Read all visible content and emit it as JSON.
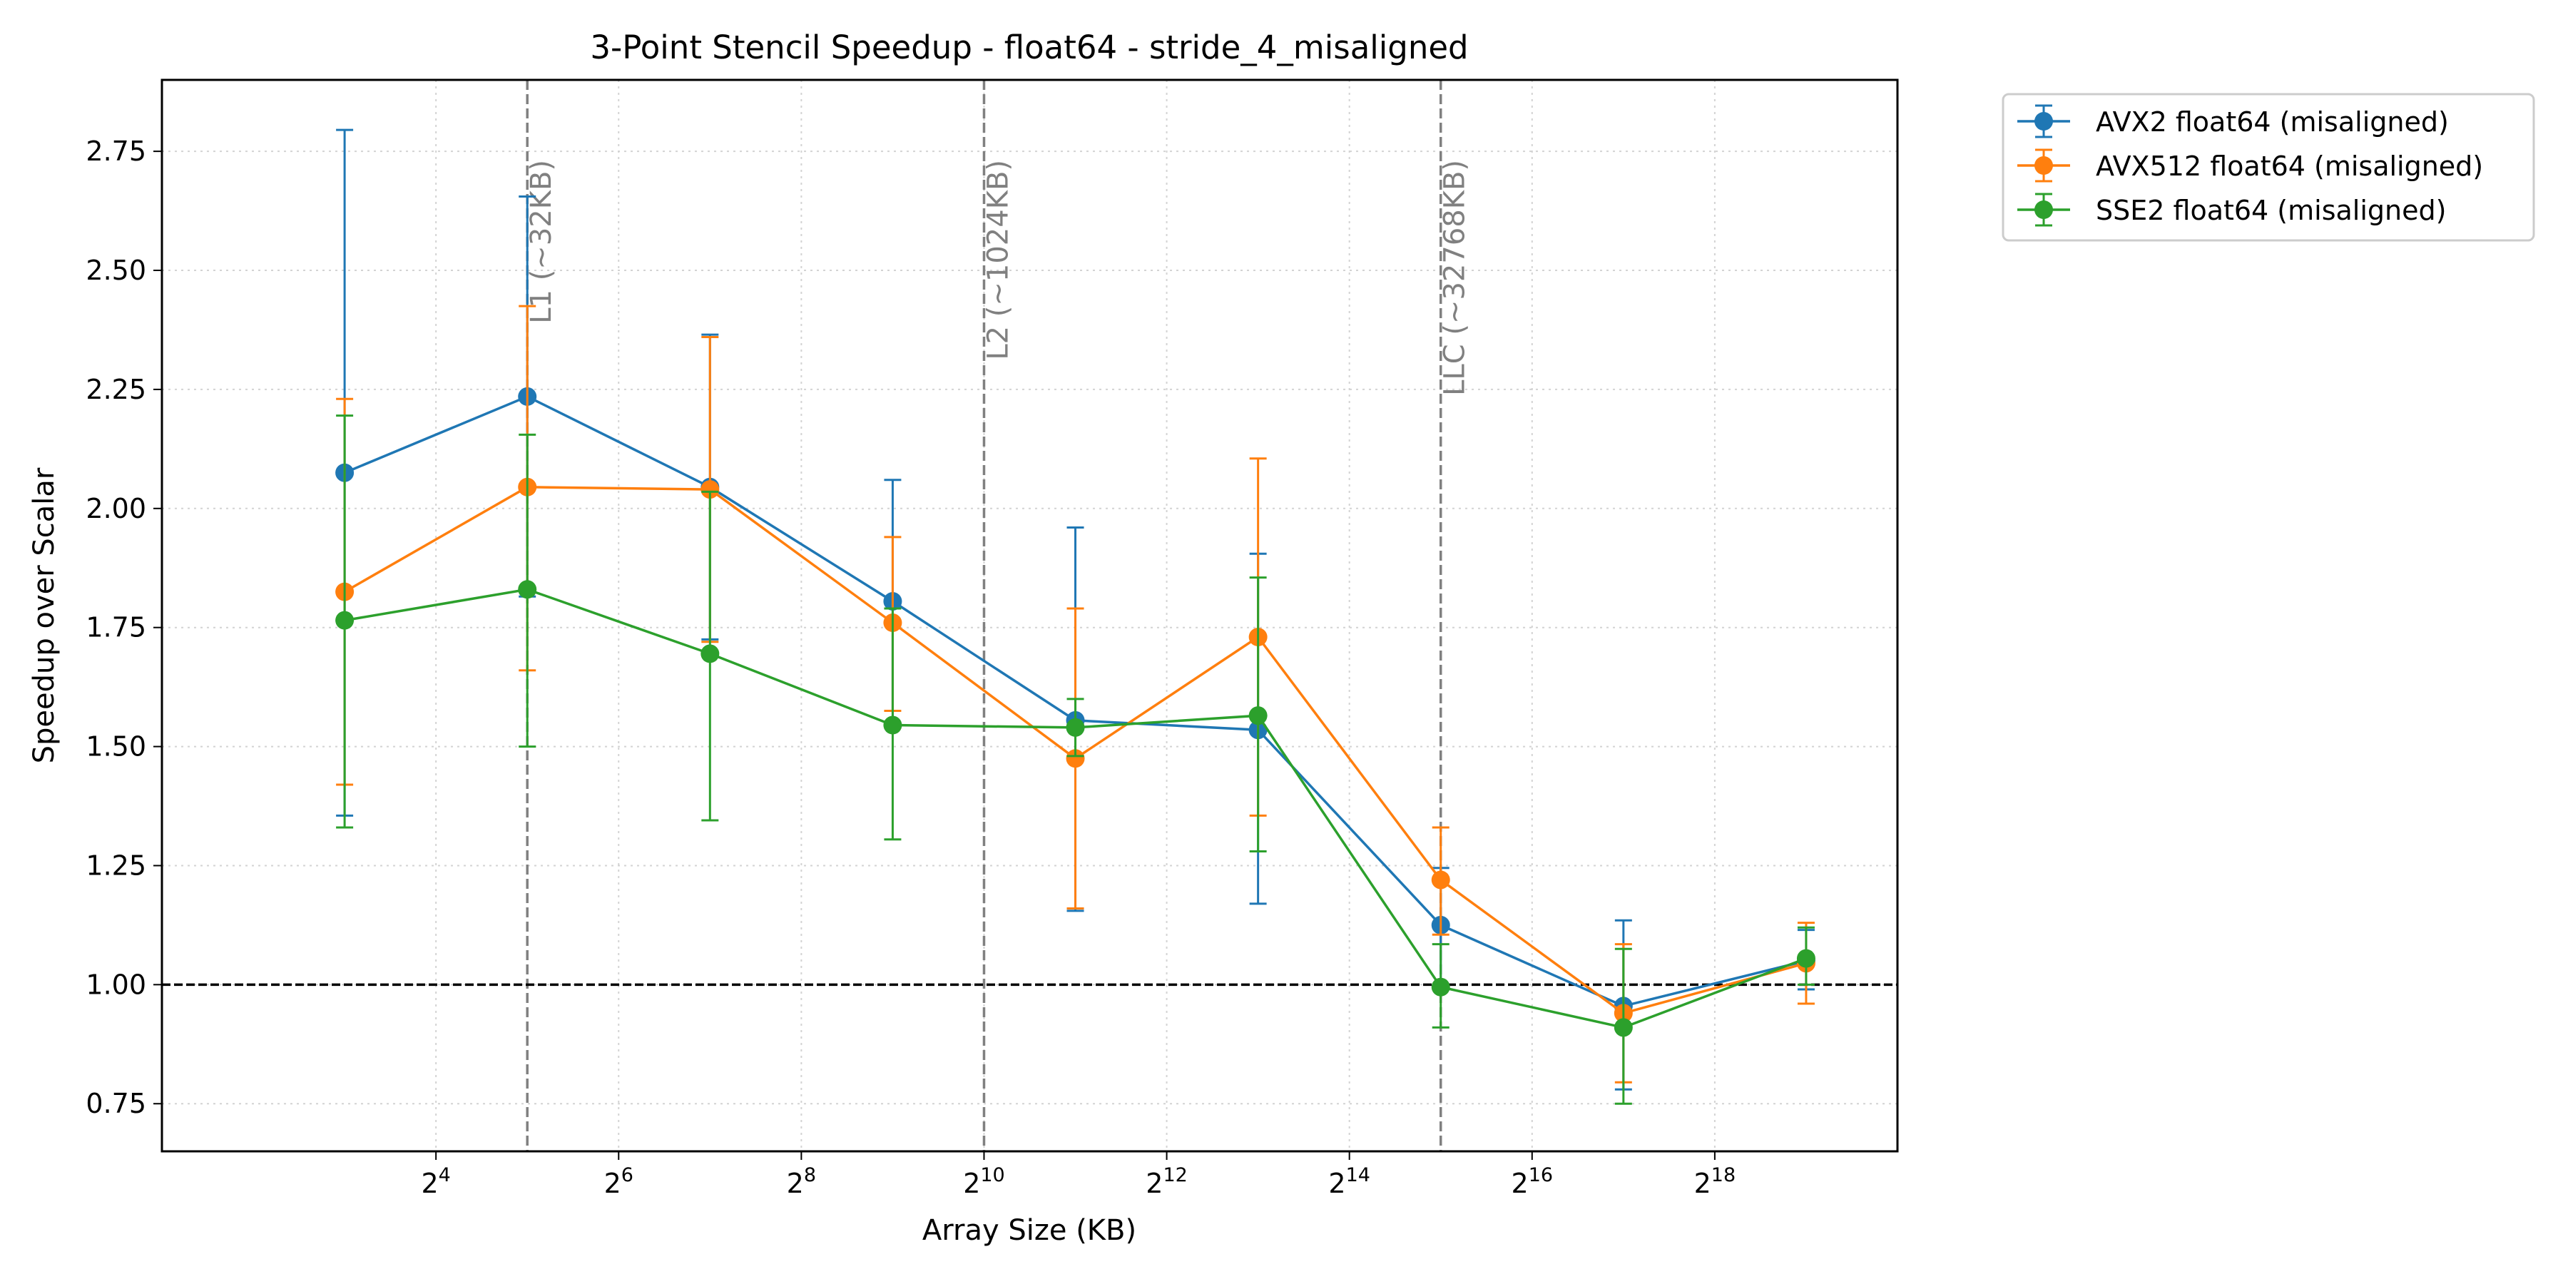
{
  "chart_data": {
    "type": "line",
    "title": "3-Point Stencil Speedup - float64 - stride_4_misaligned",
    "xlabel": "Array Size (KB)",
    "ylabel": "Speedup over Scalar",
    "x_scale": "log2",
    "xlim": [
      2.0,
      1048576
    ],
    "ylim": [
      0.65,
      2.9
    ],
    "x_ticks": [
      {
        "value": 16,
        "base": "2",
        "exp": "4"
      },
      {
        "value": 64,
        "base": "2",
        "exp": "6"
      },
      {
        "value": 256,
        "base": "2",
        "exp": "8"
      },
      {
        "value": 1024,
        "base": "2",
        "exp": "10"
      },
      {
        "value": 4096,
        "base": "2",
        "exp": "12"
      },
      {
        "value": 16384,
        "base": "2",
        "exp": "14"
      },
      {
        "value": 65536,
        "base": "2",
        "exp": "16"
      },
      {
        "value": 262144,
        "base": "2",
        "exp": "18"
      }
    ],
    "y_ticks": [
      0.75,
      1.0,
      1.25,
      1.5,
      1.75,
      2.0,
      2.25,
      2.5,
      2.75
    ],
    "y_tick_labels": [
      "0.75",
      "1.00",
      "1.25",
      "1.50",
      "1.75",
      "2.00",
      "2.25",
      "2.50",
      "2.75"
    ],
    "grid": true,
    "legend_position": "outside-top-right",
    "x": [
      8,
      32,
      128,
      512,
      2048,
      8192,
      32768,
      131072,
      524288
    ],
    "series": [
      {
        "name": "AVX2 float64 (misaligned)",
        "color": "#1f77b4",
        "values": [
          2.075,
          2.235,
          2.045,
          1.805,
          1.555,
          1.535,
          1.125,
          0.955,
          1.05
        ],
        "err_low": [
          1.355,
          1.815,
          1.725,
          1.545,
          1.155,
          1.17,
          1.0,
          0.78,
          0.99
        ],
        "err_high": [
          2.795,
          2.655,
          2.365,
          2.06,
          1.96,
          1.905,
          1.245,
          1.135,
          1.115
        ]
      },
      {
        "name": "AVX512 float64 (misaligned)",
        "color": "#ff7f0e",
        "values": [
          1.825,
          2.045,
          2.04,
          1.76,
          1.475,
          1.73,
          1.22,
          0.94,
          1.045
        ],
        "err_low": [
          1.42,
          1.66,
          1.72,
          1.575,
          1.16,
          1.355,
          1.105,
          0.795,
          0.96
        ],
        "err_high": [
          2.23,
          2.425,
          2.36,
          1.94,
          1.79,
          2.105,
          1.33,
          1.085,
          1.13
        ]
      },
      {
        "name": "SSE2 float64 (misaligned)",
        "color": "#2ca02c",
        "values": [
          1.765,
          1.83,
          1.695,
          1.545,
          1.54,
          1.565,
          0.995,
          0.91,
          1.055
        ],
        "err_low": [
          1.33,
          1.5,
          1.345,
          1.305,
          1.48,
          1.28,
          0.91,
          0.75,
          1.0
        ],
        "err_high": [
          2.195,
          2.155,
          2.035,
          1.79,
          1.6,
          1.855,
          1.085,
          1.075,
          1.12
        ]
      }
    ],
    "vlines": [
      {
        "x": 32,
        "label": "L1 (~32KB)"
      },
      {
        "x": 1024,
        "label": "L2 (~1024KB)"
      },
      {
        "x": 32768,
        "label": "LLC (~32768KB)"
      }
    ],
    "hline": {
      "y": 1.0
    }
  }
}
